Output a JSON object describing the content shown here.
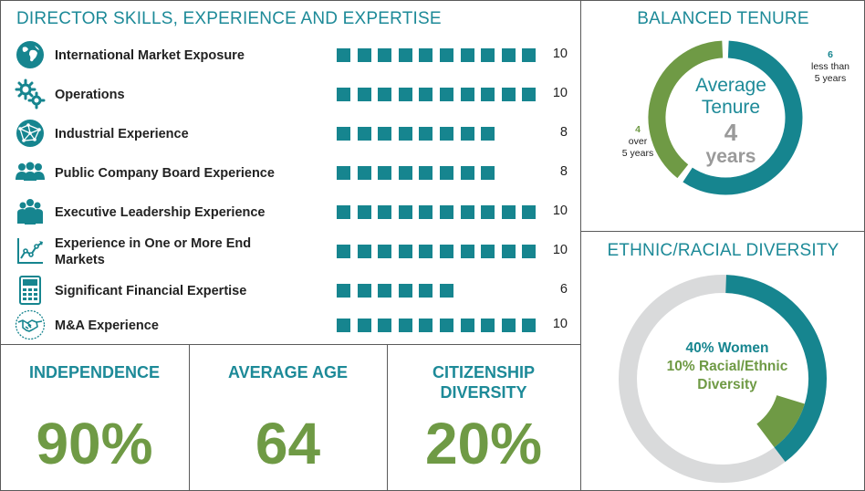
{
  "skills": {
    "title": "DIRECTOR SKILLS, EXPERIENCE AND EXPERTISE",
    "items": [
      {
        "label": "International Market Exposure",
        "value": 10,
        "icon": "globe-icon"
      },
      {
        "label": "Operations",
        "value": 10,
        "icon": "gears-icon"
      },
      {
        "label": "Industrial Experience",
        "value": 8,
        "icon": "network-globe-icon"
      },
      {
        "label": "Public Company Board Experience",
        "value": 8,
        "icon": "people-group-icon"
      },
      {
        "label": "Executive Leadership Experience",
        "value": 10,
        "icon": "leadership-icon"
      },
      {
        "label": "Experience in One or More End Markets",
        "value": 10,
        "icon": "line-chart-icon"
      },
      {
        "label": "Significant Financial Expertise",
        "value": 6,
        "icon": "calculator-icon"
      },
      {
        "label": "M&A Experience",
        "value": 10,
        "icon": "handshake-icon"
      }
    ],
    "max": 10,
    "bar_color": "#16858f"
  },
  "stats": {
    "independence": {
      "title": "INDEPENDENCE",
      "value": "90%"
    },
    "average_age": {
      "title": "AVERAGE AGE",
      "value": "64"
    },
    "citizenship": {
      "title_line1": "CITIZENSHIP",
      "title_line2": "DIVERSITY",
      "value": "20%"
    }
  },
  "tenure": {
    "title": "BALANCED TENURE",
    "center_line1": "Average",
    "center_line2": "Tenure",
    "center_value": "4",
    "center_unit": "years",
    "segments": [
      {
        "count": "6",
        "line1": "less than",
        "line2": "5 years",
        "value": 6,
        "color": "#16858f"
      },
      {
        "count": "4",
        "line1": "over",
        "line2": "5 years",
        "value": 4,
        "color": "#6f9a45"
      }
    ]
  },
  "diversity": {
    "title": "ETHNIC/RACIAL DIVERSITY",
    "women_label": "40% Women",
    "racial_line1": "10% Racial/Ethnic",
    "racial_line2": "Diversity",
    "women_pct": 40,
    "racial_pct": 10,
    "colors": {
      "women": "#16858f",
      "racial": "#6f9a45",
      "rest": "#d9dadb"
    }
  },
  "chart_data": [
    {
      "type": "bar",
      "title": "DIRECTOR SKILLS, EXPERIENCE AND EXPERTISE",
      "categories": [
        "International Market Exposure",
        "Operations",
        "Industrial Experience",
        "Public Company Board Experience",
        "Executive Leadership Experience",
        "Experience in One or More End Markets",
        "Significant Financial Expertise",
        "M&A Experience"
      ],
      "values": [
        10,
        10,
        8,
        8,
        10,
        10,
        6,
        10
      ],
      "ylim": [
        0,
        10
      ]
    },
    {
      "type": "pie",
      "title": "BALANCED TENURE",
      "categories": [
        "less than 5 years",
        "over 5 years"
      ],
      "values": [
        6,
        4
      ]
    },
    {
      "type": "pie",
      "title": "ETHNIC/RACIAL DIVERSITY",
      "categories": [
        "Women",
        "Racial/Ethnic Diversity"
      ],
      "values": [
        40,
        10
      ]
    }
  ]
}
